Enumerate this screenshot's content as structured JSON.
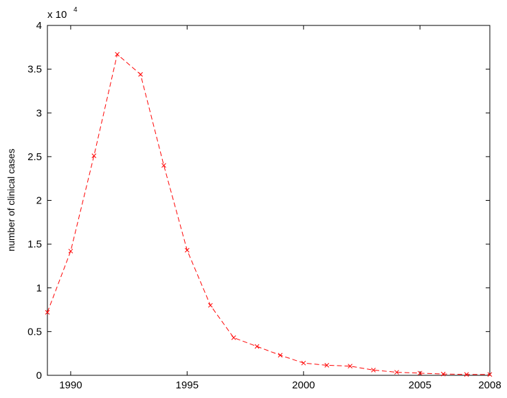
{
  "chart_data": {
    "type": "line",
    "title": "",
    "xlabel": "",
    "ylabel": "number of clinical cases",
    "y_scale_label": "x 10",
    "y_scale_exponent": "4",
    "xlim": [
      1989,
      2008
    ],
    "ylim": [
      0,
      40000
    ],
    "x_ticks": [
      1990,
      1995,
      2000,
      2005,
      2008
    ],
    "y_ticks": [
      0,
      5000,
      10000,
      15000,
      20000,
      25000,
      30000,
      35000,
      40000
    ],
    "y_tick_labels": [
      "0",
      "0.5",
      "1",
      "1.5",
      "2",
      "2.5",
      "3",
      "3.5",
      "4"
    ],
    "grid": false,
    "series": [
      {
        "color": "#ff0000",
        "line_style": "dashed",
        "marker": "x",
        "x": [
          1989,
          1990,
          1991,
          1992,
          1993,
          1994,
          1995,
          1996,
          1997,
          1998,
          1999,
          2000,
          2001,
          2002,
          2003,
          2004,
          2005,
          2006,
          2007,
          2008
        ],
        "y": [
          7200,
          14200,
          25100,
          36700,
          34400,
          24000,
          14300,
          8000,
          4300,
          3300,
          2300,
          1400,
          1150,
          1050,
          600,
          350,
          250,
          150,
          100,
          100
        ]
      }
    ]
  }
}
